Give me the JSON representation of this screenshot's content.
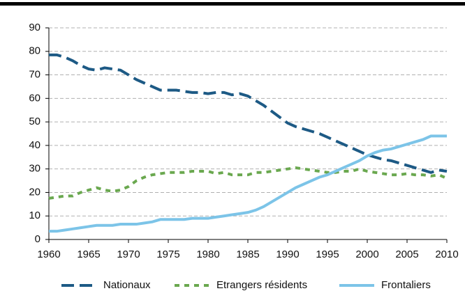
{
  "chart_data": {
    "type": "line",
    "x": [
      1960,
      1961,
      1962,
      1963,
      1964,
      1965,
      1966,
      1967,
      1968,
      1969,
      1970,
      1971,
      1972,
      1973,
      1974,
      1975,
      1976,
      1977,
      1978,
      1979,
      1980,
      1981,
      1982,
      1983,
      1984,
      1985,
      1986,
      1987,
      1988,
      1989,
      1990,
      1991,
      1992,
      1993,
      1994,
      1995,
      1996,
      1997,
      1998,
      1999,
      2000,
      2001,
      2002,
      2003,
      2004,
      2005,
      2006,
      2007,
      2008,
      2009,
      2010
    ],
    "series": [
      {
        "name": "Nationaux",
        "color": "#1d5a85",
        "style": "dashed",
        "values": [
          78.5,
          78.5,
          77.5,
          76,
          74,
          72.5,
          72,
          73,
          72.5,
          72,
          70,
          68,
          66.5,
          65,
          63.5,
          63.5,
          63.5,
          63,
          62.5,
          62.5,
          62,
          62.5,
          62.5,
          61.5,
          62,
          61,
          59,
          57,
          54.5,
          52,
          49.5,
          48,
          47,
          46,
          45,
          43.5,
          42,
          40.5,
          39,
          37.5,
          36,
          35,
          34,
          33.5,
          32.5,
          31.5,
          30.5,
          29.5,
          28.5,
          29.5,
          29
        ]
      },
      {
        "name": "Etrangers résidents",
        "color": "#6aa84f",
        "style": "dotted",
        "values": [
          17.5,
          18,
          18.5,
          18.5,
          20,
          21,
          22,
          21,
          20.5,
          21,
          22.5,
          25,
          26.5,
          27.5,
          28,
          28.5,
          28.5,
          28.5,
          29,
          29,
          29,
          28,
          28.5,
          27.5,
          27.5,
          27.5,
          28.5,
          28.5,
          29,
          29.5,
          30,
          30.5,
          30,
          29.5,
          29,
          28.5,
          28.5,
          29,
          29,
          30,
          29,
          28.5,
          28,
          27.5,
          27.5,
          28,
          27.5,
          27.5,
          27,
          27.5,
          26
        ]
      },
      {
        "name": "Frontaliers",
        "color": "#7cc4e8",
        "style": "solid",
        "values": [
          3.5,
          3.5,
          4,
          4.5,
          5,
          5.5,
          6,
          6,
          6,
          6.5,
          6.5,
          6.5,
          7,
          7.5,
          8.5,
          8.5,
          8.5,
          8.5,
          9,
          9,
          9,
          9.5,
          10,
          10.5,
          11,
          11.5,
          12.5,
          14,
          16,
          18,
          20,
          22,
          23.5,
          25,
          26.5,
          27.5,
          29,
          30.5,
          32,
          33.5,
          35.5,
          37,
          38,
          38.5,
          39.5,
          40.5,
          41.5,
          42.5,
          44,
          44,
          44
        ]
      }
    ],
    "xlim": [
      1960,
      2010
    ],
    "xticks": [
      1960,
      1965,
      1970,
      1975,
      1980,
      1985,
      1990,
      1995,
      2000,
      2005,
      2010
    ],
    "ylim": [
      0,
      90
    ],
    "yticks": [
      0,
      10,
      20,
      30,
      40,
      50,
      60,
      70,
      80,
      90
    ],
    "grid": true,
    "legend": "bottom"
  }
}
